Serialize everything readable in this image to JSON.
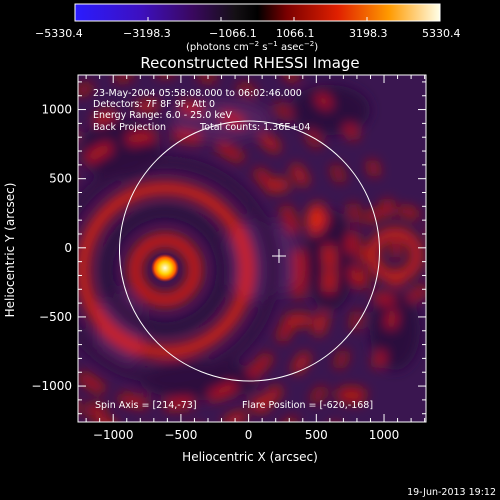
{
  "colorbar": {
    "ticks": [
      "−5330.4",
      "−3198.3",
      "−1066.1",
      "1066.1",
      "3198.3",
      "5330.4"
    ],
    "unit_label": "(photons cm",
    "unit_exp1": "−2",
    "unit_mid": " s",
    "unit_exp2": "−1",
    "unit_end": " asec",
    "unit_exp3": "−2",
    "unit_close": ")"
  },
  "chart_data": {
    "type": "heatmap",
    "title": "Reconstructed RHESSI Image",
    "xlabel": "Heliocentric X (arcsec)",
    "ylabel": "Heliocentric Y (arcsec)",
    "xlim": [
      -1260,
      1310
    ],
    "ylim": [
      -1260,
      1250
    ],
    "xticks": [
      -1000,
      -500,
      0,
      500,
      1000
    ],
    "xtick_labels": [
      "−1000",
      "−500",
      "0",
      "500",
      "1000"
    ],
    "yticks": [
      -1000,
      -500,
      0,
      500,
      1000
    ],
    "ytick_labels": [
      "−1000",
      "−500",
      "0",
      "500",
      "1000"
    ],
    "colorbar_range": [
      -5330.4,
      5330.4
    ],
    "source": {
      "x": -620,
      "y": -168,
      "value": 5330.4
    },
    "solar_limb": {
      "center": [
        0,
        0
      ],
      "radius": 950
    },
    "crosshair": [
      214,
      -73
    ],
    "annotations": [
      "23-May-2004 05:58:08.000 to 06:02:46.000",
      "Detectors: 7F 8F 9F, Att 0",
      "Energy Range: 6.0 - 25.0 keV",
      "Back Projection",
      "Total counts: 1.36E+04"
    ],
    "footer_left": "Spin Axis = [214,-73]",
    "footer_right": "Flare Position = [-620,-168]"
  },
  "timestamp": "19-Jun-2013 19:12",
  "colors": {
    "background": "#000000",
    "axes": "#ffffff"
  }
}
